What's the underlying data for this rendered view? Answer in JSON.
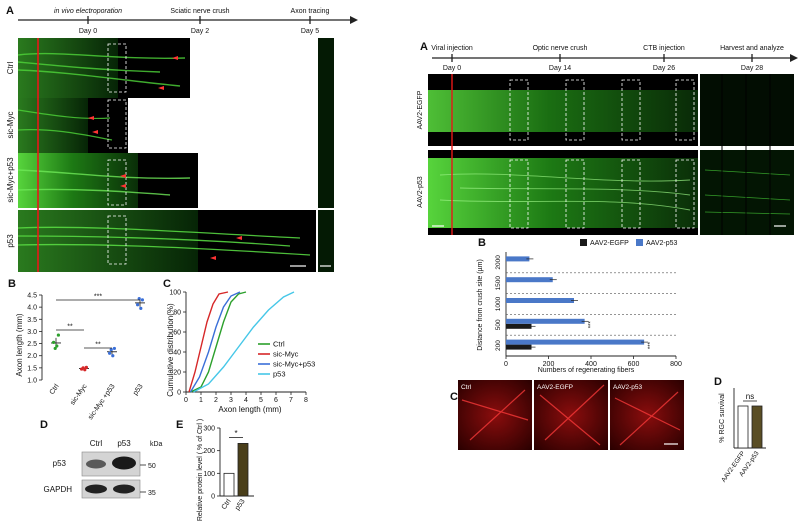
{
  "left_figure": {
    "panel_A": {
      "letter": "A",
      "timeline": [
        {
          "label": "in vivo electroporation",
          "day": "Day 0"
        },
        {
          "label": "Sciatic nerve crush",
          "day": "Day 2"
        },
        {
          "label": "Axon tracing",
          "day": "Day 5"
        }
      ],
      "row_labels": [
        "Ctrl",
        "sic-Myc",
        "sic-Myc+p53",
        "p53"
      ]
    },
    "panel_B": {
      "letter": "B",
      "ylabel": "Axon length (mm)",
      "y_ticks": [
        "1.0",
        "1.5",
        "2.0",
        "2.5",
        "3.0",
        "3.5",
        "4.0",
        "4.5"
      ],
      "categories": [
        "Ctrl",
        "sic-Myc",
        "sic-Myc +p53",
        "p53"
      ],
      "significance": [
        "***",
        "**",
        "**"
      ]
    },
    "panel_C": {
      "letter": "C",
      "ylabel": "Cumulative distribution(%)",
      "xlabel": "Axon length (mm)",
      "y_ticks": [
        "0",
        "20",
        "40",
        "60",
        "80",
        "100"
      ],
      "x_ticks": [
        "0",
        "1",
        "2",
        "3",
        "4",
        "5",
        "6",
        "7",
        "8"
      ],
      "legend": [
        "Ctrl",
        "sic-Myc",
        "sic-Myc+p53",
        "p53"
      ]
    },
    "panel_D": {
      "letter": "D",
      "lanes": [
        "Ctrl",
        "p53"
      ],
      "kda_label": "kDa",
      "rows": [
        "p53",
        "GAPDH"
      ],
      "markers": [
        "50",
        "35"
      ]
    },
    "panel_E": {
      "letter": "E",
      "ylabel": "Relative protein level ( % of Ctrl )",
      "y_ticks": [
        "0",
        "100",
        "200",
        "300"
      ],
      "categories": [
        "Ctrl",
        "p53"
      ],
      "significance": "*"
    }
  },
  "right_figure": {
    "panel_A": {
      "letter": "A",
      "timeline": [
        {
          "label": "Viral injection",
          "day": "Day 0"
        },
        {
          "label": "Optic nerve crush",
          "day": "Day 14"
        },
        {
          "label": "CTB injection",
          "day": "Day 26"
        },
        {
          "label": "Harvest and analyze",
          "day": "Day 28"
        }
      ],
      "row_labels": [
        "AAV2-EGFP",
        "AAV2-p53"
      ]
    },
    "panel_B": {
      "letter": "B",
      "legend": [
        "AAV2-EGFP",
        "AAV2-p53"
      ],
      "ylabel": "Distance from crush site (µm)",
      "xlabel": "Numbers of regenerating fibers",
      "y_ticks": [
        "2000",
        "1500",
        "1000",
        "500",
        "200"
      ],
      "x_ticks": [
        "0",
        "200",
        "400",
        "600",
        "800"
      ],
      "significance": [
        "***",
        "***"
      ]
    },
    "panel_C": {
      "letter": "C",
      "labels": [
        "Ctrl",
        "AAV2-EGFP",
        "AAV2-p53"
      ]
    },
    "panel_D": {
      "letter": "D",
      "ylabel": "% RGC survival",
      "categories": [
        "AAV2-EGFP",
        "AAV2-p53"
      ],
      "significance": "ns"
    }
  },
  "chart_data": [
    {
      "type": "scatter",
      "ylabel": "Axon length (mm)",
      "ylim": [
        1.0,
        4.5
      ],
      "categories": [
        "Ctrl",
        "sic-Myc",
        "sic-Myc +p53",
        "p53"
      ],
      "series": [
        {
          "values": [
            [
              2.55,
              2.3,
              2.4,
              2.85
            ],
            [
              1.45,
              1.5,
              1.42,
              1.52
            ],
            [
              2.1,
              2.25,
              2.0,
              2.3
            ],
            [
              4.1,
              4.35,
              3.95,
              4.3
            ]
          ]
        }
      ]
    },
    {
      "type": "line",
      "ylabel": "Cumulative distribution(%)",
      "xlabel": "Axon length (mm)",
      "xlim": [
        0,
        8
      ],
      "ylim": [
        0,
        100
      ],
      "series": [
        {
          "name": "Ctrl",
          "x": [
            0.3,
            1.0,
            1.5,
            2.0,
            2.5,
            3.0,
            3.5,
            4.0
          ],
          "y": [
            0,
            5,
            20,
            45,
            70,
            90,
            98,
            100
          ]
        },
        {
          "name": "sic-Myc",
          "x": [
            0.2,
            0.6,
            1.0,
            1.4,
            1.8,
            2.2,
            2.8
          ],
          "y": [
            0,
            20,
            45,
            70,
            88,
            98,
            100
          ]
        },
        {
          "name": "sic-Myc+p53",
          "x": [
            0.3,
            0.9,
            1.5,
            2.0,
            2.5,
            3.0,
            3.6
          ],
          "y": [
            0,
            15,
            40,
            65,
            85,
            96,
            100
          ]
        },
        {
          "name": "p53",
          "x": [
            0.5,
            1.5,
            2.5,
            3.5,
            4.5,
            5.5,
            6.5,
            7.2
          ],
          "y": [
            0,
            8,
            25,
            45,
            65,
            82,
            95,
            100
          ]
        }
      ]
    },
    {
      "type": "bar",
      "ylabel": "Relative protein level ( % of Ctrl )",
      "ylim": [
        0,
        300
      ],
      "categories": [
        "Ctrl",
        "p53"
      ],
      "values": [
        100,
        232
      ]
    },
    {
      "type": "bar",
      "orientation": "horizontal",
      "ylabel": "Distance from crush site (µm)",
      "xlabel": "Numbers of regenerating fibers",
      "xlim": [
        0,
        800
      ],
      "categories": [
        "2000",
        "1500",
        "1000",
        "500",
        "200"
      ],
      "series": [
        {
          "name": "AAV2-EGFP",
          "values": [
            0,
            0,
            0,
            120,
            120
          ]
        },
        {
          "name": "AAV2-p53",
          "values": [
            110,
            220,
            320,
            370,
            650
          ]
        }
      ]
    },
    {
      "type": "bar",
      "ylabel": "% RGC survival",
      "categories": [
        "AAV2-EGFP",
        "AAV2-p53"
      ],
      "values": [
        28,
        28
      ]
    }
  ],
  "colors": {
    "ctrl": "#2ca02c",
    "sic_myc": "#d62728",
    "sic_myc_p53": "#3a6fd8",
    "p53": "#46c7e8",
    "egfp_bar": "#1a1a1a",
    "p53_bar": "#4a78c8",
    "e_bar": "#4a3f1a",
    "d_bar": "#5a4e25"
  }
}
